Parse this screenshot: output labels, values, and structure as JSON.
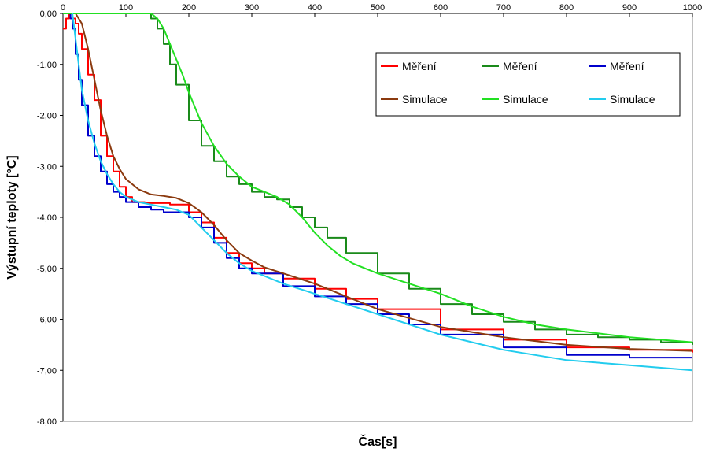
{
  "chart_data": {
    "type": "line",
    "xlabel": "Čas[s]",
    "ylabel": "Výstupní teploty [°C]",
    "xlim": [
      0,
      1000
    ],
    "ylim": [
      -8,
      0
    ],
    "x_ticks": [
      "0",
      "100",
      "200",
      "300",
      "400",
      "500",
      "600",
      "700",
      "800",
      "900",
      "1000"
    ],
    "y_ticks": [
      "0,00",
      "-1,00",
      "-2,00",
      "-3,00",
      "-4,00",
      "-5,00",
      "-6,00",
      "-7,00",
      "-8,00"
    ],
    "x_tick_values": [
      0,
      100,
      200,
      300,
      400,
      500,
      600,
      700,
      800,
      900,
      1000
    ],
    "y_tick_values": [
      0,
      -1,
      -2,
      -3,
      -4,
      -5,
      -6,
      -7,
      -8
    ],
    "grid": false,
    "legend_position": "top-right",
    "series": [
      {
        "name": "Měření",
        "color": "#ff0000",
        "style": "measurement",
        "x": [
          0,
          5,
          10,
          15,
          20,
          25,
          30,
          40,
          50,
          60,
          70,
          80,
          90,
          100,
          110,
          130,
          150,
          170,
          200,
          220,
          240,
          260,
          280,
          300,
          320,
          350,
          400,
          450,
          500,
          600,
          700,
          800,
          900,
          1000
        ],
        "y": [
          -0.3,
          -0.1,
          0,
          -0.1,
          -0.2,
          -0.4,
          -0.7,
          -1.2,
          -1.7,
          -2.4,
          -2.8,
          -3.1,
          -3.4,
          -3.6,
          -3.7,
          -3.72,
          -3.72,
          -3.75,
          -3.9,
          -4.1,
          -4.4,
          -4.7,
          -4.9,
          -5.0,
          -5.1,
          -5.2,
          -5.4,
          -5.6,
          -5.8,
          -6.2,
          -6.4,
          -6.55,
          -6.6,
          -6.65
        ]
      },
      {
        "name": "Měření",
        "color": "#1a8a1a",
        "style": "measurement",
        "x": [
          0,
          130,
          140,
          150,
          160,
          170,
          180,
          200,
          220,
          240,
          260,
          280,
          300,
          320,
          340,
          360,
          380,
          400,
          420,
          450,
          500,
          550,
          600,
          650,
          700,
          750,
          800,
          850,
          900,
          950,
          1000
        ],
        "y": [
          0,
          0,
          -0.1,
          -0.3,
          -0.6,
          -1.0,
          -1.4,
          -2.1,
          -2.6,
          -2.9,
          -3.2,
          -3.35,
          -3.5,
          -3.6,
          -3.65,
          -3.8,
          -4.0,
          -4.2,
          -4.4,
          -4.7,
          -5.1,
          -5.4,
          -5.7,
          -5.9,
          -6.05,
          -6.2,
          -6.3,
          -6.35,
          -6.4,
          -6.45,
          -6.5
        ]
      },
      {
        "name": "Měření",
        "color": "#0000cc",
        "style": "measurement",
        "x": [
          10,
          12,
          15,
          20,
          25,
          30,
          40,
          50,
          60,
          70,
          80,
          90,
          100,
          120,
          140,
          160,
          180,
          200,
          220,
          240,
          260,
          280,
          300,
          350,
          400,
          450,
          500,
          550,
          600,
          700,
          800,
          900,
          1000
        ],
        "y": [
          0,
          -0.1,
          -0.3,
          -0.8,
          -1.3,
          -1.8,
          -2.4,
          -2.8,
          -3.1,
          -3.35,
          -3.5,
          -3.6,
          -3.7,
          -3.8,
          -3.85,
          -3.9,
          -3.9,
          -4.0,
          -4.2,
          -4.5,
          -4.8,
          -5.0,
          -5.1,
          -5.35,
          -5.55,
          -5.7,
          -5.9,
          -6.1,
          -6.3,
          -6.55,
          -6.7,
          -6.75,
          -6.75
        ]
      },
      {
        "name": "Simulace",
        "color": "#8b3a0f",
        "style": "simulation",
        "x": [
          20,
          30,
          40,
          50,
          60,
          70,
          80,
          90,
          100,
          120,
          140,
          160,
          180,
          200,
          220,
          240,
          260,
          280,
          300,
          320,
          350,
          400,
          450,
          500,
          600,
          700,
          800,
          900,
          1000
        ],
        "y": [
          0,
          -0.2,
          -0.7,
          -1.3,
          -1.9,
          -2.4,
          -2.8,
          -3.05,
          -3.25,
          -3.45,
          -3.55,
          -3.58,
          -3.62,
          -3.72,
          -3.9,
          -4.15,
          -4.45,
          -4.7,
          -4.85,
          -4.98,
          -5.1,
          -5.3,
          -5.55,
          -5.8,
          -6.15,
          -6.35,
          -6.5,
          -6.58,
          -6.62
        ]
      },
      {
        "name": "Simulace",
        "color": "#22e022",
        "style": "simulation",
        "x": [
          0,
          140,
          150,
          160,
          170,
          180,
          190,
          200,
          220,
          240,
          260,
          280,
          300,
          320,
          340,
          360,
          380,
          400,
          420,
          440,
          460,
          480,
          500,
          550,
          600,
          650,
          700,
          750,
          800,
          900,
          1000
        ],
        "y": [
          0,
          0,
          -0.1,
          -0.3,
          -0.6,
          -0.9,
          -1.2,
          -1.55,
          -2.15,
          -2.6,
          -2.95,
          -3.2,
          -3.4,
          -3.5,
          -3.6,
          -3.75,
          -4.0,
          -4.3,
          -4.55,
          -4.75,
          -4.9,
          -5.0,
          -5.1,
          -5.3,
          -5.5,
          -5.75,
          -5.95,
          -6.1,
          -6.2,
          -6.35,
          -6.45
        ]
      },
      {
        "name": "Simulace",
        "color": "#22ccee",
        "style": "simulation",
        "x": [
          15,
          20,
          25,
          30,
          40,
          50,
          60,
          70,
          80,
          90,
          100,
          120,
          140,
          160,
          180,
          200,
          220,
          240,
          260,
          280,
          300,
          350,
          400,
          450,
          500,
          550,
          600,
          650,
          700,
          800,
          900,
          1000
        ],
        "y": [
          0,
          -0.5,
          -1.0,
          -1.5,
          -2.1,
          -2.55,
          -2.9,
          -3.15,
          -3.35,
          -3.5,
          -3.6,
          -3.7,
          -3.75,
          -3.8,
          -3.85,
          -3.95,
          -4.2,
          -4.45,
          -4.7,
          -4.9,
          -5.05,
          -5.3,
          -5.5,
          -5.7,
          -5.9,
          -6.1,
          -6.3,
          -6.45,
          -6.6,
          -6.8,
          -6.9,
          -7.0
        ]
      }
    ]
  }
}
